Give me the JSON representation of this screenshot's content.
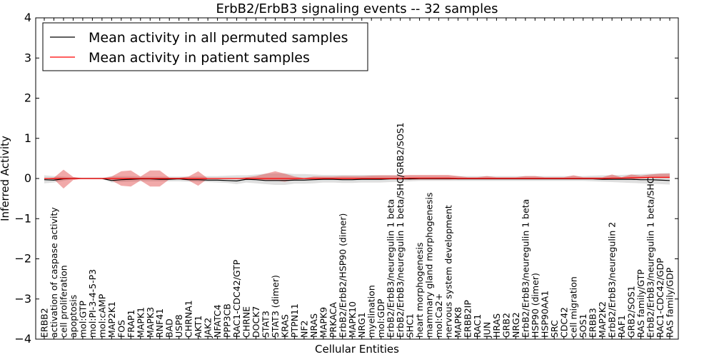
{
  "chart_data": {
    "type": "line",
    "title": "ErbB2/ErbB3 signaling events -- 32 samples",
    "xlabel": "Cellular Entities",
    "ylabel": "Inferred Activity",
    "ylim": [
      -4,
      4
    ],
    "yticks": [
      -4,
      -3,
      -2,
      -1,
      0,
      1,
      2,
      3,
      4
    ],
    "legend_position": "top-left",
    "categories": [
      "ERBB2",
      "activation of caspase activity",
      "cell proliferation",
      "apoptosis",
      "mol:GTP",
      "mol:PI-3-4-5-P3",
      "mol:cAMP",
      "MAP2K1",
      "FOS",
      "FRAP1",
      "MAPK1",
      "MAPK3",
      "RNF41",
      "BAD",
      "USP8",
      "CHRNA1",
      "AKT1",
      "JAK2",
      "NFATC4",
      "PPP3CB",
      "RAC1-CDC42/GTP",
      "CHRNE",
      "DOCK7",
      "STAT3",
      "STAT3 (dimer)",
      "KRAS",
      "PTPN11",
      "NF2",
      "NRAS",
      "MAPK9",
      "PRKACA",
      "ErbB2/ErbB2/HSP90 (dimer)",
      "MAPK10",
      "NRG1",
      "myelination",
      "mol:GDP",
      "ErbB2/ErbB3/neuregulin 1 beta",
      "ErbB2/ErbB3/neuregulin 1 beta/SHC/GRB2/SOS1",
      "SHC1",
      "heart morphogenesis",
      "mammary gland morphogenesis",
      "mol:Ca2+",
      "nervous system development",
      "MAPK8",
      "ERBB2IP",
      "RAC1",
      "JUN",
      "HRAS",
      "GRB2",
      "NRG2",
      "ErbB2/ErbB3/neuregulin 1 beta",
      "HSP90 (dimer)",
      "HSP90AA1",
      "SRC",
      "CDC42",
      "cell migration",
      "SOS1",
      "ERBB3",
      "MAP2K2",
      "ErbB2/ErbB3/neuregulin 2",
      "RAF1",
      "GRB2/SOS1",
      "RAS family/GTP",
      "ErbB2/ErbB3/neuregulin 1 beta/SHC",
      "RAC1-CDC42/GDP",
      "RAS family/GDP"
    ],
    "series": [
      {
        "name": "Mean activity in all permuted samples",
        "color": "#000000",
        "values": [
          -0.03,
          -0.04,
          -0.01,
          0.0,
          0.0,
          0.0,
          0.0,
          -0.05,
          -0.03,
          -0.02,
          -0.01,
          -0.01,
          -0.02,
          -0.02,
          -0.01,
          -0.03,
          -0.03,
          -0.04,
          -0.04,
          -0.05,
          -0.06,
          -0.02,
          -0.03,
          -0.05,
          -0.05,
          -0.05,
          -0.04,
          -0.04,
          -0.03,
          -0.02,
          -0.02,
          -0.03,
          -0.03,
          -0.02,
          -0.02,
          -0.02,
          -0.01,
          -0.01,
          -0.01,
          0.0,
          0.0,
          0.0,
          0.0,
          -0.01,
          -0.01,
          -0.01,
          -0.01,
          -0.01,
          -0.01,
          -0.01,
          -0.01,
          -0.01,
          -0.01,
          -0.01,
          -0.01,
          -0.01,
          -0.01,
          -0.01,
          -0.02,
          -0.02,
          -0.02,
          -0.02,
          -0.03,
          -0.03,
          -0.04,
          -0.05
        ],
        "band_low": [
          -0.12,
          -0.1,
          -0.06,
          -0.02,
          -0.01,
          -0.01,
          -0.01,
          -0.1,
          -0.09,
          -0.08,
          -0.07,
          -0.07,
          -0.07,
          -0.07,
          -0.07,
          -0.08,
          -0.08,
          -0.09,
          -0.1,
          -0.11,
          -0.14,
          -0.1,
          -0.12,
          -0.14,
          -0.16,
          -0.16,
          -0.13,
          -0.13,
          -0.12,
          -0.1,
          -0.1,
          -0.11,
          -0.11,
          -0.1,
          -0.1,
          -0.1,
          -0.09,
          -0.08,
          -0.07,
          -0.06,
          -0.06,
          -0.06,
          -0.06,
          -0.06,
          -0.06,
          -0.06,
          -0.06,
          -0.06,
          -0.06,
          -0.06,
          -0.06,
          -0.06,
          -0.06,
          -0.06,
          -0.06,
          -0.06,
          -0.06,
          -0.07,
          -0.08,
          -0.09,
          -0.1,
          -0.11,
          -0.12,
          -0.13,
          -0.14,
          -0.15
        ],
        "band_high": [
          0.08,
          0.06,
          0.05,
          0.03,
          0.02,
          0.02,
          0.02,
          0.06,
          0.06,
          0.06,
          0.05,
          0.05,
          0.05,
          0.05,
          0.05,
          0.05,
          0.06,
          0.06,
          0.06,
          0.07,
          0.08,
          0.08,
          0.1,
          0.12,
          0.13,
          0.13,
          0.11,
          0.11,
          0.1,
          0.09,
          0.09,
          0.09,
          0.09,
          0.09,
          0.09,
          0.08,
          0.08,
          0.07,
          0.06,
          0.06,
          0.06,
          0.06,
          0.06,
          0.06,
          0.06,
          0.06,
          0.06,
          0.06,
          0.06,
          0.06,
          0.06,
          0.06,
          0.06,
          0.06,
          0.06,
          0.06,
          0.06,
          0.07,
          0.08,
          0.08,
          0.09,
          0.1,
          0.11,
          0.12,
          0.13,
          0.14
        ]
      },
      {
        "name": "Mean activity in patient samples",
        "color": "#ff0000",
        "values": [
          0.0,
          0.0,
          0.0,
          0.0,
          0.0,
          0.0,
          0.0,
          0.0,
          0.0,
          0.0,
          0.0,
          0.0,
          0.0,
          0.0,
          0.0,
          0.0,
          0.0,
          0.0,
          0.0,
          0.0,
          0.0,
          0.0,
          0.0,
          0.0,
          0.0,
          0.0,
          0.0,
          0.0,
          0.0,
          0.0,
          0.0,
          0.0,
          0.0,
          0.0,
          0.0,
          0.0,
          0.0,
          0.0,
          0.01,
          0.01,
          0.01,
          0.01,
          0.01,
          0.0,
          0.0,
          0.0,
          0.0,
          0.0,
          0.0,
          0.0,
          0.0,
          0.0,
          0.0,
          0.0,
          0.0,
          0.0,
          0.0,
          0.0,
          0.0,
          0.01,
          0.01,
          0.02,
          0.02,
          0.03,
          0.03,
          0.03
        ],
        "band_low": [
          0.0,
          -0.02,
          -0.25,
          -0.04,
          0.0,
          0.0,
          0.0,
          -0.05,
          -0.18,
          -0.2,
          -0.05,
          -0.2,
          -0.2,
          -0.02,
          -0.02,
          -0.05,
          -0.18,
          0.0,
          0.0,
          0.0,
          0.0,
          0.0,
          -0.02,
          -0.04,
          -0.05,
          -0.08,
          -0.03,
          -0.01,
          -0.03,
          -0.01,
          -0.01,
          -0.02,
          -0.02,
          -0.02,
          -0.02,
          -0.02,
          -0.02,
          -0.02,
          -0.03,
          -0.03,
          -0.03,
          -0.03,
          -0.03,
          -0.02,
          -0.01,
          -0.01,
          -0.01,
          -0.01,
          -0.01,
          -0.01,
          -0.01,
          -0.01,
          -0.01,
          -0.01,
          -0.01,
          -0.01,
          -0.01,
          -0.01,
          -0.01,
          -0.03,
          -0.01,
          -0.02,
          0.0,
          0.01,
          0.01,
          0.01
        ],
        "band_high": [
          0.0,
          0.02,
          0.22,
          0.04,
          0.0,
          0.0,
          0.0,
          0.05,
          0.18,
          0.2,
          0.05,
          0.2,
          0.2,
          0.02,
          0.02,
          0.05,
          0.18,
          0.0,
          0.0,
          0.0,
          0.0,
          0.03,
          0.06,
          0.12,
          0.18,
          0.12,
          0.05,
          0.01,
          0.05,
          0.05,
          0.05,
          0.06,
          0.06,
          0.06,
          0.07,
          0.08,
          0.08,
          0.08,
          0.09,
          0.09,
          0.09,
          0.09,
          0.09,
          0.06,
          0.03,
          0.03,
          0.06,
          0.03,
          0.03,
          0.03,
          0.06,
          0.06,
          0.03,
          0.03,
          0.03,
          0.08,
          0.03,
          0.03,
          0.03,
          0.1,
          0.03,
          0.1,
          0.07,
          0.1,
          0.12,
          0.12
        ]
      }
    ]
  }
}
